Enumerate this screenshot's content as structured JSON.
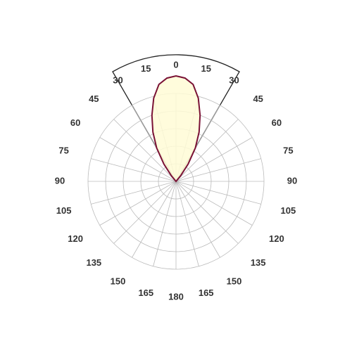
{
  "chart_data": {
    "type": "polar",
    "thetaticks": [
      0,
      {
        "value": 15,
        "label": "15"
      },
      {
        "value": 30,
        "label": "30"
      },
      {
        "value": 45,
        "label": "45"
      },
      {
        "value": 60,
        "label": "60"
      },
      {
        "value": 75,
        "label": "75"
      },
      {
        "value": 90,
        "label": "90"
      },
      {
        "value": 105,
        "label": "105"
      },
      {
        "value": 120,
        "label": "120"
      },
      {
        "value": 135,
        "label": "135"
      },
      {
        "value": 150,
        "label": "150"
      },
      {
        "value": 165,
        "label": "165"
      },
      180,
      {
        "value": -165,
        "label": "165"
      },
      {
        "value": -150,
        "label": "150"
      },
      {
        "value": -135,
        "label": "135"
      },
      {
        "value": -120,
        "label": "120"
      },
      {
        "value": -105,
        "label": "105"
      },
      {
        "value": -90,
        "label": "90"
      },
      {
        "value": -75,
        "label": "75"
      },
      {
        "value": -60,
        "label": "60"
      },
      {
        "value": -45,
        "label": "45"
      },
      {
        "value": -30,
        "label": "30"
      },
      {
        "value": -15,
        "label": "15"
      }
    ],
    "rlim": [
      0,
      5
    ],
    "rings": [
      1,
      2,
      3,
      4,
      5
    ],
    "series": [
      {
        "color": "#7a1235",
        "fill": "#fffbd6",
        "theta": [
          -45,
          -40,
          -35,
          -30,
          -25,
          -20,
          -15,
          -10,
          -5,
          0,
          5,
          10,
          15,
          20,
          25,
          30,
          35,
          40,
          45
        ],
        "r": [
          0,
          0.4,
          1.2,
          2.2,
          3.1,
          4.0,
          4.9,
          5.6,
          5.9,
          6.0,
          5.9,
          5.6,
          4.9,
          4.0,
          3.1,
          2.2,
          1.2,
          0.4,
          0
        ]
      }
    ]
  }
}
